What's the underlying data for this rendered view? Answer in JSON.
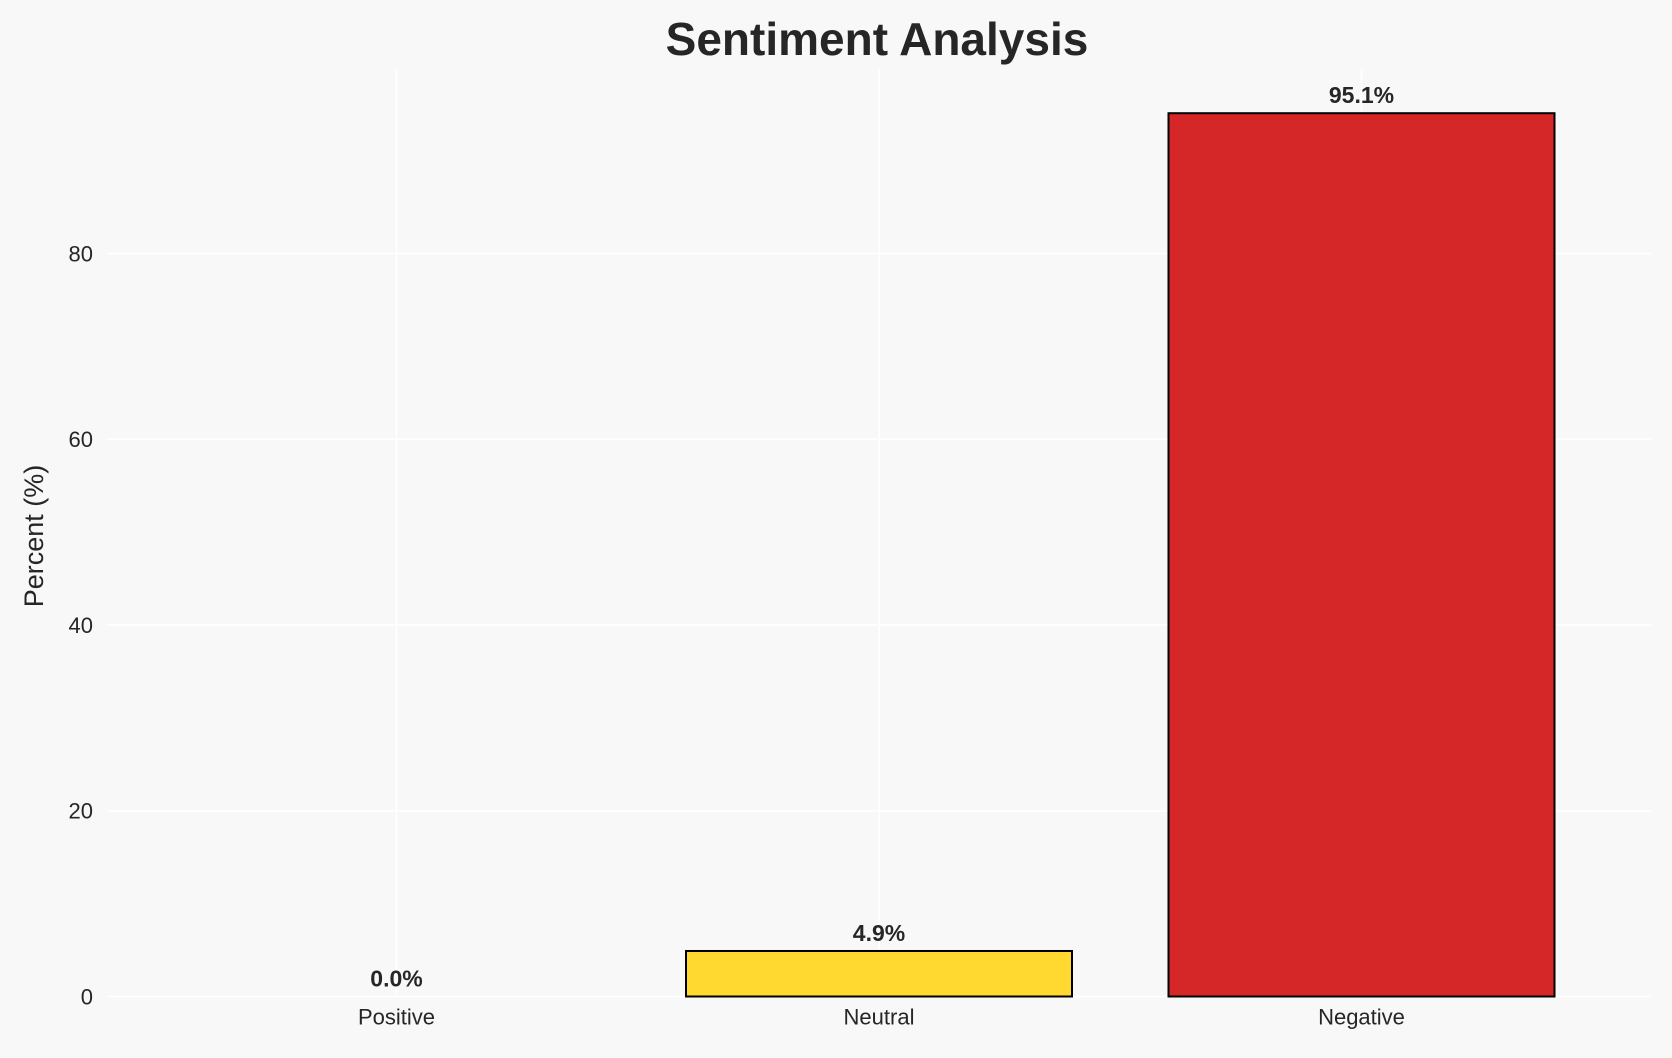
{
  "chart_data": {
    "type": "bar",
    "title": "Sentiment Analysis",
    "xlabel": "",
    "ylabel": "Percent (%)",
    "categories": [
      "Positive",
      "Neutral",
      "Negative"
    ],
    "values": [
      0.0,
      4.9,
      95.1
    ],
    "data_labels": [
      "0.0%",
      "4.9%",
      "95.1%"
    ],
    "colors": [
      "#2ca02c",
      "#ffd92f",
      "#d62728"
    ],
    "ylim": [
      0,
      99.86
    ],
    "yticks": [
      0,
      20,
      40,
      60,
      80
    ],
    "grid": true,
    "background": "#f8f8f8"
  }
}
